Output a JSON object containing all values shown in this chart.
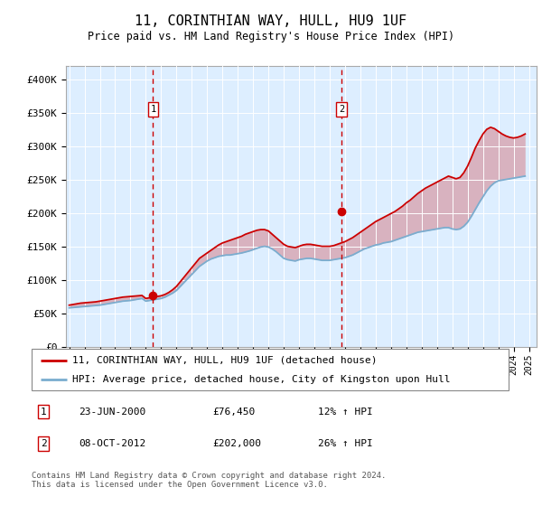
{
  "title": "11, CORINTHIAN WAY, HULL, HU9 1UF",
  "subtitle": "Price paid vs. HM Land Registry's House Price Index (HPI)",
  "ylabel_ticks": [
    "£0",
    "£50K",
    "£100K",
    "£150K",
    "£200K",
    "£250K",
    "£300K",
    "£350K",
    "£400K"
  ],
  "ytick_values": [
    0,
    50000,
    100000,
    150000,
    200000,
    250000,
    300000,
    350000,
    400000
  ],
  "ylim": [
    0,
    420000
  ],
  "sale1_x": 2000.47,
  "sale1_y": 76450,
  "sale2_x": 2012.77,
  "sale2_y": 202000,
  "legend_line1": "11, CORINTHIAN WAY, HULL, HU9 1UF (detached house)",
  "legend_line2": "HPI: Average price, detached house, City of Kingston upon Hull",
  "table_row1": [
    "1",
    "23-JUN-2000",
    "£76,450",
    "12% ↑ HPI"
  ],
  "table_row2": [
    "2",
    "08-OCT-2012",
    "£202,000",
    "26% ↑ HPI"
  ],
  "footnote": "Contains HM Land Registry data © Crown copyright and database right 2024.\nThis data is licensed under the Open Government Licence v3.0.",
  "plot_bg": "#ddeeff",
  "red_line_color": "#cc0000",
  "blue_line_color": "#7aadcf",
  "vline_color": "#cc0000",
  "xlim_left": 1994.8,
  "xlim_right": 2025.5,
  "hpi_years": [
    1995.0,
    1995.25,
    1995.5,
    1995.75,
    1996.0,
    1996.25,
    1996.5,
    1996.75,
    1997.0,
    1997.25,
    1997.5,
    1997.75,
    1998.0,
    1998.25,
    1998.5,
    1998.75,
    1999.0,
    1999.25,
    1999.5,
    1999.75,
    2000.0,
    2000.25,
    2000.5,
    2000.75,
    2001.0,
    2001.25,
    2001.5,
    2001.75,
    2002.0,
    2002.25,
    2002.5,
    2002.75,
    2003.0,
    2003.25,
    2003.5,
    2003.75,
    2004.0,
    2004.25,
    2004.5,
    2004.75,
    2005.0,
    2005.25,
    2005.5,
    2005.75,
    2006.0,
    2006.25,
    2006.5,
    2006.75,
    2007.0,
    2007.25,
    2007.5,
    2007.75,
    2008.0,
    2008.25,
    2008.5,
    2008.75,
    2009.0,
    2009.25,
    2009.5,
    2009.75,
    2010.0,
    2010.25,
    2010.5,
    2010.75,
    2011.0,
    2011.25,
    2011.5,
    2011.75,
    2012.0,
    2012.25,
    2012.5,
    2012.75,
    2013.0,
    2013.25,
    2013.5,
    2013.75,
    2014.0,
    2014.25,
    2014.5,
    2014.75,
    2015.0,
    2015.25,
    2015.5,
    2015.75,
    2016.0,
    2016.25,
    2016.5,
    2016.75,
    2017.0,
    2017.25,
    2017.5,
    2017.75,
    2018.0,
    2018.25,
    2018.5,
    2018.75,
    2019.0,
    2019.25,
    2019.5,
    2019.75,
    2020.0,
    2020.25,
    2020.5,
    2020.75,
    2021.0,
    2021.25,
    2021.5,
    2021.75,
    2022.0,
    2022.25,
    2022.5,
    2022.75,
    2023.0,
    2023.25,
    2023.5,
    2023.75,
    2024.0,
    2024.25,
    2024.5,
    2024.75
  ],
  "hpi_values": [
    58000,
    58500,
    59000,
    59500,
    60000,
    60500,
    61000,
    61500,
    62000,
    63000,
    64000,
    65000,
    66000,
    67000,
    68000,
    68500,
    69000,
    70000,
    71000,
    72000,
    68000,
    69000,
    70000,
    71000,
    72000,
    74000,
    77000,
    80000,
    84000,
    90000,
    96000,
    102000,
    108000,
    114000,
    120000,
    124000,
    128000,
    131000,
    133000,
    135000,
    136000,
    137000,
    137000,
    138000,
    139000,
    140000,
    141500,
    143000,
    145000,
    147000,
    149000,
    150000,
    149000,
    146000,
    142000,
    137000,
    132000,
    130000,
    129000,
    128000,
    130000,
    131000,
    132000,
    132000,
    131000,
    130000,
    129000,
    129000,
    129000,
    130000,
    131000,
    132000,
    133000,
    135000,
    137000,
    140000,
    143000,
    146000,
    148000,
    150000,
    152000,
    153000,
    155000,
    156000,
    157000,
    159000,
    161000,
    163000,
    165000,
    167000,
    169000,
    171000,
    172000,
    173000,
    174000,
    175000,
    176000,
    177000,
    178000,
    178000,
    176000,
    175000,
    176000,
    180000,
    186000,
    195000,
    205000,
    215000,
    224000,
    233000,
    240000,
    245000,
    248000,
    249000,
    250000,
    251000,
    252000,
    253000,
    254000,
    255000
  ],
  "price_values": [
    62000,
    63000,
    64000,
    65000,
    65500,
    66000,
    66500,
    67000,
    68000,
    69000,
    70000,
    71000,
    72000,
    73000,
    74000,
    74500,
    75000,
    75500,
    76000,
    76500,
    72000,
    73000,
    74000,
    75000,
    76000,
    78000,
    81000,
    85000,
    90000,
    97000,
    104000,
    111000,
    118000,
    125000,
    132000,
    136000,
    140000,
    144000,
    148000,
    152000,
    155000,
    157000,
    159000,
    161000,
    163000,
    165000,
    168000,
    170000,
    172000,
    174000,
    175000,
    175000,
    173000,
    168000,
    163000,
    158000,
    153000,
    150000,
    149000,
    148000,
    150000,
    152000,
    153000,
    153000,
    152000,
    151000,
    150000,
    150000,
    150000,
    151000,
    153000,
    155000,
    157000,
    160000,
    163000,
    167000,
    171000,
    175000,
    179000,
    183000,
    187000,
    190000,
    193000,
    196000,
    199000,
    202000,
    206000,
    210000,
    215000,
    219000,
    224000,
    229000,
    233000,
    237000,
    240000,
    243000,
    246000,
    249000,
    252000,
    255000,
    253000,
    251000,
    253000,
    260000,
    270000,
    283000,
    297000,
    308000,
    318000,
    325000,
    328000,
    326000,
    322000,
    318000,
    315000,
    313000,
    312000,
    313000,
    315000,
    318000
  ]
}
